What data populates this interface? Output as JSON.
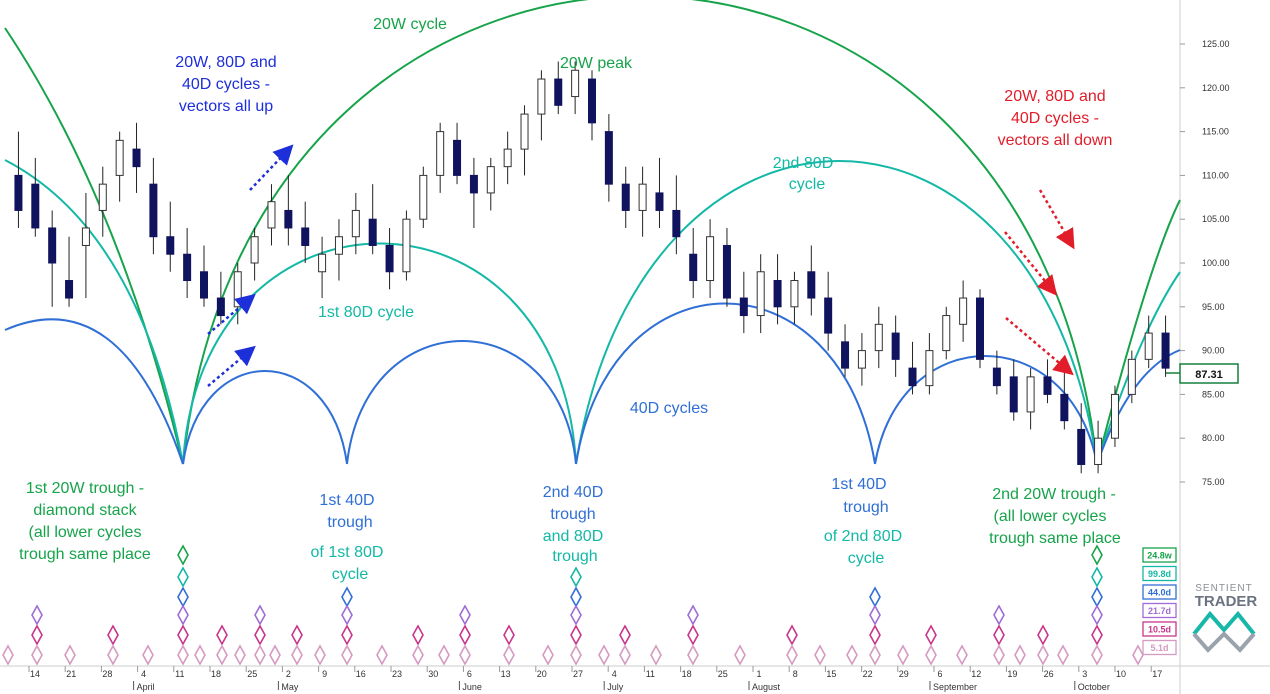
{
  "chart_data": {
    "type": "candlestick",
    "title": "",
    "y_axis": {
      "min": 75,
      "max": 125,
      "ticks": [
        "125.00",
        "120.00",
        "115.00",
        "110.00",
        "105.00",
        "100.00",
        "95.00",
        "90.00",
        "85.00",
        "80.00",
        "75.00"
      ],
      "last_price": "87.31"
    },
    "x_axis": {
      "date_labels": [
        "14",
        "21",
        "28",
        "4",
        "11",
        "18",
        "25",
        "2",
        "9",
        "16",
        "23",
        "30",
        "6",
        "13",
        "20",
        "27",
        "4",
        "11",
        "18",
        "25",
        "1",
        "8",
        "15",
        "22",
        "29",
        "6",
        "12",
        "19",
        "26",
        "3",
        "10",
        "17"
      ],
      "month_labels": [
        "April",
        "May",
        "June",
        "July",
        "August",
        "September",
        "October"
      ]
    },
    "candles": [
      {
        "o": 110,
        "h": 115,
        "l": 104,
        "c": 106
      },
      {
        "o": 109,
        "h": 112,
        "l": 103,
        "c": 104
      },
      {
        "o": 104,
        "h": 106,
        "l": 95,
        "c": 100
      },
      {
        "o": 98,
        "h": 103,
        "l": 95,
        "c": 96
      },
      {
        "o": 102,
        "h": 108,
        "l": 96,
        "c": 104
      },
      {
        "o": 106,
        "h": 111,
        "l": 103,
        "c": 109
      },
      {
        "o": 110,
        "h": 115,
        "l": 107,
        "c": 114
      },
      {
        "o": 113,
        "h": 116,
        "l": 108,
        "c": 111
      },
      {
        "o": 109,
        "h": 112,
        "l": 101,
        "c": 103
      },
      {
        "o": 103,
        "h": 107,
        "l": 99,
        "c": 101
      },
      {
        "o": 101,
        "h": 104,
        "l": 96,
        "c": 98
      },
      {
        "o": 99,
        "h": 102,
        "l": 95,
        "c": 96
      },
      {
        "o": 96,
        "h": 99,
        "l": 93,
        "c": 94
      },
      {
        "o": 95,
        "h": 100,
        "l": 93,
        "c": 99
      },
      {
        "o": 100,
        "h": 104,
        "l": 98,
        "c": 103
      },
      {
        "o": 104,
        "h": 109,
        "l": 102,
        "c": 107
      },
      {
        "o": 106,
        "h": 110,
        "l": 102,
        "c": 104
      },
      {
        "o": 104,
        "h": 107,
        "l": 100,
        "c": 102
      },
      {
        "o": 99,
        "h": 103,
        "l": 96,
        "c": 101
      },
      {
        "o": 101,
        "h": 105,
        "l": 98,
        "c": 103
      },
      {
        "o": 103,
        "h": 108,
        "l": 101,
        "c": 106
      },
      {
        "o": 105,
        "h": 109,
        "l": 101,
        "c": 102
      },
      {
        "o": 102,
        "h": 104,
        "l": 97,
        "c": 99
      },
      {
        "o": 99,
        "h": 106,
        "l": 98,
        "c": 105
      },
      {
        "o": 105,
        "h": 111,
        "l": 104,
        "c": 110
      },
      {
        "o": 110,
        "h": 116,
        "l": 108,
        "c": 115
      },
      {
        "o": 114,
        "h": 116,
        "l": 109,
        "c": 110
      },
      {
        "o": 110,
        "h": 112,
        "l": 104,
        "c": 108
      },
      {
        "o": 108,
        "h": 112,
        "l": 106,
        "c": 111
      },
      {
        "o": 111,
        "h": 115,
        "l": 109,
        "c": 113
      },
      {
        "o": 113,
        "h": 118,
        "l": 110,
        "c": 117
      },
      {
        "o": 117,
        "h": 122,
        "l": 114,
        "c": 121
      },
      {
        "o": 121,
        "h": 123,
        "l": 117,
        "c": 118
      },
      {
        "o": 119,
        "h": 123,
        "l": 117,
        "c": 122
      },
      {
        "o": 121,
        "h": 122,
        "l": 114,
        "c": 116
      },
      {
        "o": 115,
        "h": 117,
        "l": 107,
        "c": 109
      },
      {
        "o": 109,
        "h": 111,
        "l": 104,
        "c": 106
      },
      {
        "o": 106,
        "h": 111,
        "l": 103,
        "c": 109
      },
      {
        "o": 108,
        "h": 112,
        "l": 104,
        "c": 106
      },
      {
        "o": 106,
        "h": 110,
        "l": 101,
        "c": 103
      },
      {
        "o": 101,
        "h": 104,
        "l": 96,
        "c": 98
      },
      {
        "o": 98,
        "h": 105,
        "l": 96,
        "c": 103
      },
      {
        "o": 102,
        "h": 104,
        "l": 95,
        "c": 96
      },
      {
        "o": 96,
        "h": 99,
        "l": 92,
        "c": 94
      },
      {
        "o": 94,
        "h": 101,
        "l": 92,
        "c": 99
      },
      {
        "o": 98,
        "h": 101,
        "l": 93,
        "c": 95
      },
      {
        "o": 95,
        "h": 99,
        "l": 93,
        "c": 98
      },
      {
        "o": 99,
        "h": 102,
        "l": 94,
        "c": 96
      },
      {
        "o": 96,
        "h": 99,
        "l": 90,
        "c": 92
      },
      {
        "o": 91,
        "h": 93,
        "l": 87,
        "c": 88
      },
      {
        "o": 88,
        "h": 92,
        "l": 86,
        "c": 90
      },
      {
        "o": 90,
        "h": 95,
        "l": 88,
        "c": 93
      },
      {
        "o": 92,
        "h": 94,
        "l": 87,
        "c": 89
      },
      {
        "o": 88,
        "h": 91,
        "l": 85,
        "c": 86
      },
      {
        "o": 86,
        "h": 92,
        "l": 85,
        "c": 90
      },
      {
        "o": 90,
        "h": 95,
        "l": 89,
        "c": 94
      },
      {
        "o": 93,
        "h": 98,
        "l": 91,
        "c": 96
      },
      {
        "o": 96,
        "h": 97,
        "l": 88,
        "c": 89
      },
      {
        "o": 88,
        "h": 90,
        "l": 85,
        "c": 86
      },
      {
        "o": 87,
        "h": 89,
        "l": 82,
        "c": 83
      },
      {
        "o": 83,
        "h": 88,
        "l": 81,
        "c": 87
      },
      {
        "o": 87,
        "h": 89,
        "l": 84,
        "c": 85
      },
      {
        "o": 85,
        "h": 88,
        "l": 81,
        "c": 82
      },
      {
        "o": 81,
        "h": 84,
        "l": 76,
        "c": 77
      },
      {
        "o": 77,
        "h": 82,
        "l": 76,
        "c": 80
      },
      {
        "o": 80,
        "h": 86,
        "l": 79,
        "c": 85
      },
      {
        "o": 85,
        "h": 90,
        "l": 84,
        "c": 89
      },
      {
        "o": 89,
        "h": 94,
        "l": 88,
        "c": 92
      },
      {
        "o": 92,
        "h": 94,
        "l": 87,
        "c": 88
      }
    ],
    "cycle_indicators": [
      {
        "label": "24.8w",
        "color": "#16a34a"
      },
      {
        "label": "99.8d",
        "color": "#14b8a6"
      },
      {
        "label": "44.0d",
        "color": "#2f6fd6"
      },
      {
        "label": "21.7d",
        "color": "#a06cd5"
      },
      {
        "label": "10.5d",
        "color": "#c8358a"
      },
      {
        "label": "5.1d",
        "color": "#d49ac0"
      }
    ],
    "colors": {
      "green": "#16a34a",
      "teal": "#14b8a6",
      "blue": "#2f6fd6",
      "annot_blue": "#1d2fd8",
      "red": "#e11d2a",
      "candle_down": "#10135e"
    }
  },
  "annotations": {
    "cycle_20w": "20W cycle",
    "peak_20w": "20W peak",
    "vectors_up": [
      "20W, 80D and",
      "40D cycles -",
      "vectors all up"
    ],
    "vectors_down": [
      "20W, 80D and",
      "40D cycles -",
      "vectors all down"
    ],
    "second_80d": [
      "2nd 80D",
      "cycle"
    ],
    "first_80d": "1st 80D cycle",
    "cycles_40d": "40D cycles",
    "trough_1st_20w": [
      "1st 20W trough -",
      "diamond stack",
      "(all lower cycles",
      "trough same place"
    ],
    "trough_1st_40d": [
      "1st 40D",
      "trough",
      "of 1st 80D",
      "cycle"
    ],
    "trough_2nd_40d": [
      "2nd 40D",
      "trough",
      "and 80D",
      "trough"
    ],
    "trough_1st_40d_2nd": [
      "1st 40D",
      "trough",
      "of 2nd 80D",
      "cycle"
    ],
    "trough_2nd_20w": [
      "2nd 20W trough -",
      "(all lower cycles",
      "trough same place"
    ]
  },
  "brand": {
    "line1": "SENTIENT",
    "line2": "TRADER"
  }
}
